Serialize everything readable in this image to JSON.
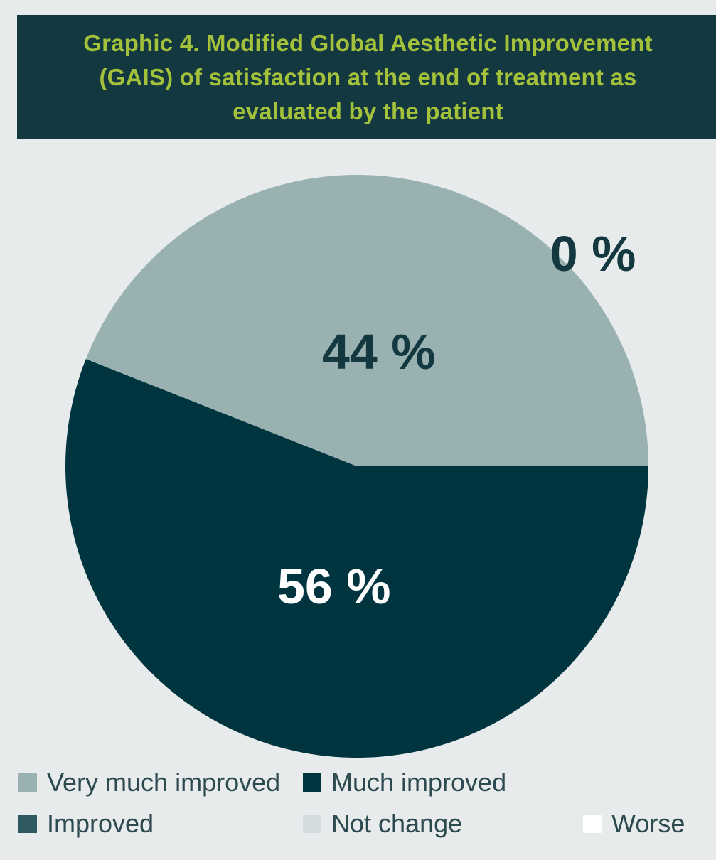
{
  "chart_data": {
    "type": "pie",
    "title": "Graphic 4. Modified Global Aesthetic Improvement (GAIS) of satisfaction at the end of treatment as evaluated by the patient",
    "slices": [
      {
        "name": "Very much improved",
        "value": 44,
        "label": "44 %",
        "color": "#99b1b1",
        "label_color": "#133840"
      },
      {
        "name": "Much improved",
        "value": 56,
        "label": "56 %",
        "color": "#003540",
        "label_color": "#ffffff"
      },
      {
        "name": "Improved",
        "value": 0,
        "label": "",
        "color": "#2f5a61",
        "label_color": "#133840"
      },
      {
        "name": "Not change",
        "value": 0,
        "label": "",
        "color": "#d3dcdc",
        "label_color": "#133840"
      },
      {
        "name": "Worse",
        "value": 0,
        "label": "0 %",
        "color": "#ffffff",
        "label_color": "#133840"
      }
    ],
    "legend": {
      "position": "bottom",
      "entries": [
        "Very much improved",
        "Much improved",
        "Improved",
        "Not change",
        "Worse"
      ]
    }
  },
  "colors": {
    "background": "#e8ebeb",
    "title_box": "#133840",
    "title_text": "#a4c13c",
    "legend_text": "#2d4a51"
  }
}
